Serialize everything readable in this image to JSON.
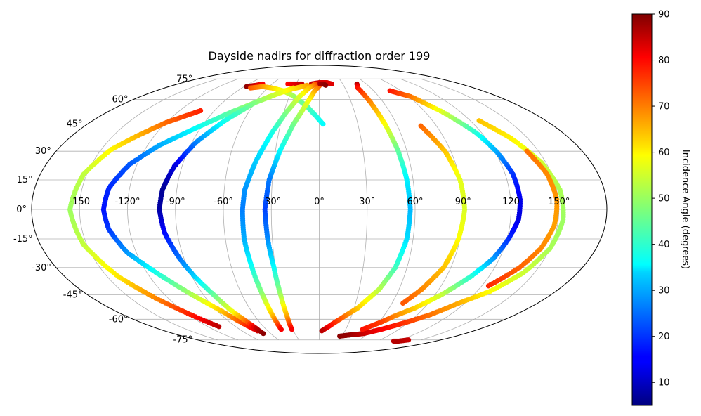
{
  "chart_data": {
    "type": "scatter",
    "projection": "mollweide",
    "title": "Dayside nadirs for diffraction order 199",
    "xlabel": "",
    "ylabel": "",
    "grid": true,
    "lon_tick_labels": [
      {
        "value": -150,
        "text": "-150"
      },
      {
        "value": -120,
        "text": "-120°"
      },
      {
        "value": -90,
        "text": "-90°"
      },
      {
        "value": -60,
        "text": "-60°"
      },
      {
        "value": -30,
        "text": "-30°"
      },
      {
        "value": 0,
        "text": "0°"
      },
      {
        "value": 30,
        "text": "30°"
      },
      {
        "value": 60,
        "text": "60°"
      },
      {
        "value": 90,
        "text": "90°"
      },
      {
        "value": 120,
        "text": "120"
      },
      {
        "value": 150,
        "text": "150°"
      }
    ],
    "lat_tick_labels": [
      {
        "value": 75,
        "text": "75°"
      },
      {
        "value": 60,
        "text": "60°"
      },
      {
        "value": 45,
        "text": "45°"
      },
      {
        "value": 30,
        "text": "30°"
      },
      {
        "value": 15,
        "text": "15°"
      },
      {
        "value": 0,
        "text": "0°"
      },
      {
        "value": -15,
        "text": "-15°"
      },
      {
        "value": -30,
        "text": "-30°"
      },
      {
        "value": -45,
        "text": "-45°"
      },
      {
        "value": -60,
        "text": "-60°"
      },
      {
        "value": -75,
        "text": "-75°"
      }
    ],
    "colorbar": {
      "label": "Incidence Angle (degrees)",
      "colormap": "jet",
      "range": [
        5,
        90
      ],
      "ticks": [
        10,
        20,
        30,
        40,
        50,
        60,
        70,
        80,
        90
      ]
    },
    "tracks": [
      {
        "points": [
          [
            -87,
            69,
            89
          ],
          [
            -78,
            70,
            83
          ],
          [
            -72,
            71,
            80
          ]
        ]
      },
      {
        "points": [
          [
            -102,
            53,
            77
          ],
          [
            -120,
            46,
            71
          ],
          [
            -133,
            38,
            64
          ],
          [
            -143,
            31,
            59
          ],
          [
            -152,
            18,
            53
          ],
          [
            -156,
            0,
            50
          ],
          [
            -152,
            -18,
            53
          ],
          [
            -142,
            -35,
            60
          ],
          [
            -130,
            -47,
            68
          ],
          [
            -118,
            -57,
            77
          ],
          [
            -108,
            -65,
            85
          ]
        ]
      },
      {
        "points": [
          [
            -80,
            68,
            72
          ],
          [
            -68,
            69,
            67
          ],
          [
            -55,
            68,
            62
          ],
          [
            -40,
            66,
            57
          ],
          [
            -28,
            63,
            52
          ],
          [
            -20,
            60,
            48
          ],
          [
            -10,
            55,
            44
          ],
          [
            -3,
            50,
            40
          ],
          [
            3,
            45,
            37
          ]
        ]
      },
      {
        "points": [
          [
            -40,
            71,
            79
          ],
          [
            -30,
            71,
            82
          ],
          [
            -22,
            71,
            84
          ]
        ]
      },
      {
        "points": [
          [
            -30,
            68,
            63
          ],
          [
            -50,
            62,
            55
          ],
          [
            -75,
            52,
            45
          ],
          [
            -95,
            42,
            37
          ],
          [
            -112,
            33,
            30
          ],
          [
            -125,
            23,
            23
          ],
          [
            -133,
            11,
            19
          ],
          [
            -135,
            0,
            17
          ],
          [
            -133,
            -10,
            20
          ],
          [
            -126,
            -22,
            28
          ],
          [
            -112,
            -34,
            40
          ],
          [
            -100,
            -44,
            50
          ],
          [
            -86,
            -55,
            63
          ],
          [
            -78,
            -63,
            74
          ],
          [
            -72,
            -68,
            83
          ]
        ]
      },
      {
        "points": [
          [
            -10,
            71,
            84
          ],
          [
            0,
            72,
            83
          ],
          [
            10,
            72,
            82
          ],
          [
            16,
            71,
            82
          ]
        ]
      },
      {
        "points": [
          [
            -15,
            70,
            66
          ],
          [
            -38,
            66,
            58
          ],
          [
            -60,
            58,
            48
          ],
          [
            -75,
            47,
            39
          ],
          [
            -87,
            35,
            27
          ],
          [
            -95,
            22,
            13
          ],
          [
            -99,
            10,
            7
          ],
          [
            -100,
            0,
            8
          ],
          [
            -98,
            -12,
            16
          ],
          [
            -93,
            -25,
            25
          ],
          [
            -88,
            -35,
            33
          ],
          [
            -82,
            -45,
            45
          ],
          [
            -77,
            -55,
            57
          ],
          [
            -72,
            -62,
            72
          ],
          [
            -70,
            -66,
            84
          ],
          [
            -69,
            -70,
            89
          ]
        ]
      },
      {
        "points": [
          [
            -5,
            71,
            73
          ],
          [
            -12,
            68,
            64
          ],
          [
            -20,
            62,
            56
          ],
          [
            -28,
            52,
            48
          ],
          [
            -35,
            40,
            39
          ],
          [
            -42,
            25,
            33
          ],
          [
            -47,
            10,
            28
          ],
          [
            -48,
            0,
            26
          ],
          [
            -48,
            -15,
            30
          ],
          [
            -46,
            -30,
            38
          ],
          [
            -44,
            -45,
            49
          ],
          [
            -43,
            -58,
            64
          ],
          [
            -43,
            -67,
            80
          ]
        ]
      },
      {
        "points": [
          [
            2,
            71,
            76
          ],
          [
            -5,
            66,
            66
          ],
          [
            -12,
            57,
            56
          ],
          [
            -20,
            45,
            47
          ],
          [
            -27,
            30,
            37
          ],
          [
            -32,
            15,
            26
          ],
          [
            -34,
            0,
            21
          ],
          [
            -33,
            -15,
            27
          ],
          [
            -31,
            -30,
            37
          ],
          [
            -30,
            -45,
            50
          ],
          [
            -30,
            -58,
            65
          ],
          [
            -31,
            -67,
            80
          ]
        ]
      },
      {
        "points": [
          [
            1,
            71,
            86
          ],
          [
            5,
            71,
            88
          ],
          [
            8,
            70,
            89
          ]
        ]
      },
      {
        "points": [
          [
            48,
            71,
            86
          ],
          [
            45,
            68,
            78
          ],
          [
            48,
            58,
            68
          ],
          [
            51,
            45,
            58
          ],
          [
            54,
            30,
            45
          ],
          [
            56,
            15,
            36
          ],
          [
            57,
            0,
            31
          ],
          [
            56,
            -15,
            34
          ],
          [
            52,
            -30,
            42
          ],
          [
            45,
            -42,
            52
          ],
          [
            33,
            -53,
            62
          ],
          [
            20,
            -60,
            72
          ],
          [
            10,
            -65,
            79
          ],
          [
            3,
            -68,
            85
          ]
        ]
      },
      {
        "points": [
          [
            27,
            -72,
            89
          ],
          [
            40,
            -71,
            88
          ],
          [
            55,
            -70,
            84
          ],
          [
            70,
            -67,
            80
          ],
          [
            88,
            -62,
            75
          ],
          [
            102,
            -57,
            70
          ],
          [
            115,
            -50,
            65
          ],
          [
            130,
            -43,
            58
          ],
          [
            142,
            -33,
            54
          ],
          [
            150,
            -20,
            51
          ],
          [
            153,
            -5,
            50
          ],
          [
            152,
            10,
            51
          ],
          [
            147,
            24,
            54
          ],
          [
            138,
            37,
            59
          ],
          [
            127,
            47,
            63
          ]
        ]
      },
      {
        "points": [
          [
            78,
            66,
            78
          ],
          [
            92,
            62,
            70
          ],
          [
            105,
            52,
            55
          ],
          [
            116,
            40,
            40
          ],
          [
            121,
            30,
            30
          ],
          [
            125,
            18,
            20
          ],
          [
            126,
            5,
            14
          ],
          [
            125,
            -5,
            13
          ],
          [
            121,
            -15,
            19
          ],
          [
            116,
            -25,
            28
          ],
          [
            107,
            -35,
            40
          ],
          [
            95,
            -45,
            53
          ],
          [
            82,
            -53,
            62
          ],
          [
            70,
            -58,
            68
          ],
          [
            62,
            -62,
            74
          ],
          [
            49,
            -67,
            78
          ]
        ]
      },
      {
        "points": [
          [
            78,
            44,
            71
          ],
          [
            86,
            30,
            63
          ],
          [
            90,
            15,
            56
          ],
          [
            91,
            0,
            55
          ],
          [
            89,
            -15,
            58
          ],
          [
            85,
            -30,
            63
          ],
          [
            77,
            -42,
            68
          ],
          [
            69,
            -50,
            72
          ]
        ]
      },
      {
        "points": [
          [
            142,
            30,
            70
          ],
          [
            147,
            18,
            68
          ],
          [
            149,
            5,
            67
          ],
          [
            148,
            -8,
            66
          ],
          [
            144,
            -20,
            68
          ],
          [
            137,
            -30,
            71
          ],
          [
            130,
            -36,
            74
          ],
          [
            125,
            -40,
            76
          ]
        ]
      },
      {
        "points": [
          [
            115,
            -76,
            85
          ],
          [
            123,
            -76,
            86
          ],
          [
            132,
            -75,
            84
          ]
        ]
      }
    ]
  }
}
